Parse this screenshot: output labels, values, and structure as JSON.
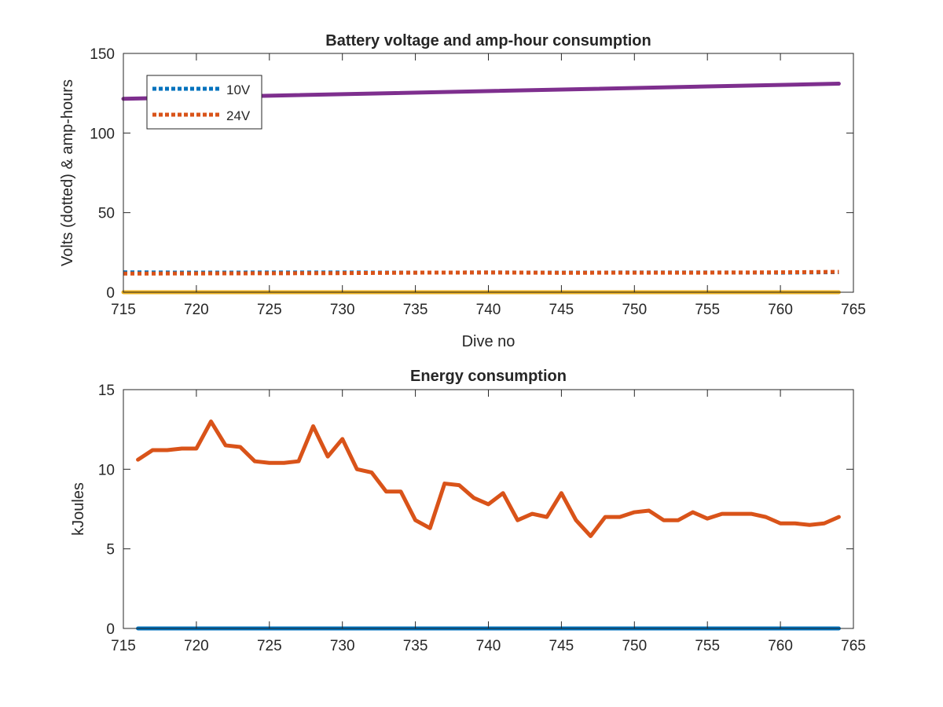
{
  "colors": {
    "blue": "#0072bd",
    "orange": "#d95319",
    "yellow": "#edb120",
    "purple": "#7e2f8e",
    "axis": "#262626"
  },
  "chart_data": [
    {
      "type": "line",
      "title": "Battery voltage and amp-hour consumption",
      "xlabel": "Dive no",
      "ylabel": "Volts (dotted) & amp-hours",
      "xlim": [
        715,
        765
      ],
      "ylim": [
        0,
        150
      ],
      "xticks": [
        "715",
        "720",
        "725",
        "730",
        "735",
        "740",
        "745",
        "750",
        "755",
        "760",
        "765"
      ],
      "yticks": [
        "0",
        "50",
        "100",
        "150"
      ],
      "legend": {
        "placement": "top-left"
      },
      "series": [
        {
          "name": "10V",
          "style": "dotted",
          "color": "#0072bd",
          "x": [
            715,
            720,
            725,
            730,
            735,
            740,
            745,
            750,
            755,
            760,
            764
          ],
          "y": [
            12.5,
            12.3,
            12.4,
            12.4,
            12.3,
            12.4,
            12.3,
            12.4,
            12.4,
            12.3,
            12.6
          ]
        },
        {
          "name": "24V",
          "style": "dotted",
          "color": "#d95319",
          "x": [
            715,
            720,
            725,
            730,
            735,
            740,
            745,
            750,
            755,
            760,
            764
          ],
          "y": [
            11.7,
            11.8,
            11.9,
            12.0,
            12.3,
            12.4,
            12.2,
            12.3,
            12.3,
            12.5,
            12.8
          ]
        },
        {
          "style": "solid",
          "color": "#edb120",
          "x": [
            715,
            764
          ],
          "y": [
            0,
            0
          ]
        },
        {
          "style": "solid",
          "color": "#7e2f8e",
          "x": [
            715,
            764
          ],
          "y": [
            121.5,
            131.0
          ]
        }
      ]
    },
    {
      "type": "line",
      "title": "Energy consumption",
      "xlabel": "",
      "ylabel": "kJoules",
      "xlim": [
        715,
        765
      ],
      "ylim": [
        0,
        15
      ],
      "xticks": [
        "715",
        "720",
        "725",
        "730",
        "735",
        "740",
        "745",
        "750",
        "755",
        "760",
        "765"
      ],
      "yticks": [
        "0",
        "5",
        "10",
        "15"
      ],
      "series": [
        {
          "color": "#0072bd",
          "x": [
            716,
            764
          ],
          "y": [
            0,
            0
          ]
        },
        {
          "color": "#d95319",
          "x": [
            716,
            717,
            718,
            719,
            720,
            721,
            722,
            723,
            724,
            725,
            726,
            727,
            728,
            729,
            730,
            731,
            732,
            733,
            734,
            735,
            736,
            737,
            738,
            739,
            740,
            741,
            742,
            743,
            744,
            745,
            746,
            747,
            748,
            749,
            750,
            751,
            752,
            753,
            754,
            755,
            756,
            757,
            758,
            759,
            760,
            761,
            762,
            763,
            764
          ],
          "y": [
            10.6,
            11.2,
            11.2,
            11.3,
            11.3,
            13.0,
            11.5,
            11.4,
            10.5,
            10.4,
            10.4,
            10.5,
            12.7,
            10.8,
            11.9,
            10.0,
            9.8,
            8.6,
            8.6,
            6.8,
            6.3,
            9.1,
            9.0,
            8.2,
            7.8,
            8.5,
            6.8,
            7.2,
            7.0,
            8.5,
            6.8,
            5.8,
            7.0,
            7.0,
            7.3,
            7.4,
            6.8,
            6.8,
            7.3,
            6.9,
            7.2,
            7.2,
            7.2,
            7.0,
            6.6,
            6.6,
            6.5,
            6.6,
            7.0
          ]
        }
      ]
    }
  ]
}
